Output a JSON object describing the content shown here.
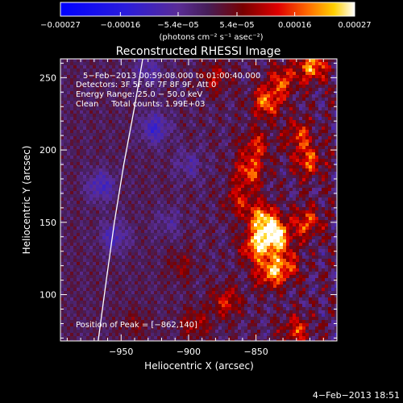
{
  "chart_data": {
    "type": "heatmap",
    "title": "Reconstructed RHESSI Image",
    "xlabel": "Heliocentric X (arcsec)",
    "ylabel": "Heliocentric Y (arcsec)",
    "xlim": [
      -995,
      -790
    ],
    "ylim": [
      68,
      263
    ],
    "x_ticks": [
      -950,
      -900,
      -850
    ],
    "x_tick_labels": [
      "−950",
      "−900",
      "−850"
    ],
    "y_ticks": [
      100,
      150,
      200,
      250
    ],
    "y_tick_labels": [
      "100",
      "150",
      "200",
      "250"
    ],
    "colorbar": {
      "min": -0.00027,
      "max": 0.00027,
      "ticks": [
        -0.00027,
        -0.00016,
        -5.4e-05,
        5.4e-05,
        0.00016,
        0.00027
      ],
      "tick_labels": [
        "−0.00027",
        "−0.00016",
        "−5.4e−05",
        "5.4e−05",
        "0.00016",
        "0.00027"
      ],
      "units_text": "(photons cm⁻² s⁻¹ asec⁻²)"
    },
    "annotations": [
      "5−Feb−2013 00:59:08.000 to 01:00:40.000",
      "Detectors: 3F 5F 6F 7F 8F 9F, Att 0",
      "Energy Range: 25.0 − 50.0 keV",
      "Clean     Total counts: 1.99E+03"
    ],
    "peak_label": "Position of Peak = [−862,140]",
    "peak": [
      -862,
      140
    ],
    "limb": [
      [
        -967,
        68
      ],
      [
        -961,
        110
      ],
      [
        -955,
        150
      ],
      [
        -948,
        190
      ],
      [
        -940,
        230
      ],
      [
        -934,
        263
      ]
    ],
    "emission": [
      {
        "x": -835,
        "y": 140,
        "value": 0.00026
      },
      {
        "x": -845,
        "y": 152,
        "value": 0.00022
      },
      {
        "x": -850,
        "y": 133,
        "value": 0.0002
      },
      {
        "x": -828,
        "y": 120,
        "value": 0.00014
      },
      {
        "x": -812,
        "y": 150,
        "value": 0.00015
      },
      {
        "x": -840,
        "y": 115,
        "value": 0.00017
      },
      {
        "x": -855,
        "y": 185,
        "value": 0.00016
      },
      {
        "x": -850,
        "y": 203,
        "value": 0.00012
      },
      {
        "x": -862,
        "y": 165,
        "value": 0.00011
      },
      {
        "x": -842,
        "y": 233,
        "value": 0.00018
      },
      {
        "x": -830,
        "y": 248,
        "value": 0.00014
      },
      {
        "x": -818,
        "y": 210,
        "value": 0.00013
      },
      {
        "x": -808,
        "y": 258,
        "value": 0.0002
      },
      {
        "x": -811,
        "y": 192,
        "value": 0.00015
      },
      {
        "x": -820,
        "y": 75,
        "value": 0.00013
      },
      {
        "x": -872,
        "y": 95,
        "value": 0.00012
      },
      {
        "x": -895,
        "y": 80,
        "value": 9e-05
      },
      {
        "x": -880,
        "y": 250,
        "value": 9e-05
      },
      {
        "x": -940,
        "y": 80,
        "value": 5e-05
      },
      {
        "x": -905,
        "y": 120,
        "value": 6e-05
      },
      {
        "x": -925,
        "y": 215,
        "value": -0.00011
      },
      {
        "x": -955,
        "y": 140,
        "value": -9e-05
      },
      {
        "x": -965,
        "y": 175,
        "value": -0.0001
      },
      {
        "x": -930,
        "y": 255,
        "value": -7e-05
      },
      {
        "x": -900,
        "y": 190,
        "value": -6e-05
      },
      {
        "x": -915,
        "y": 150,
        "value": -5e-05
      }
    ]
  },
  "footer": {
    "date_label": "4−Feb−2013 18:51"
  },
  "colors": {
    "background": "#000000",
    "foreground": "#ffffff"
  }
}
